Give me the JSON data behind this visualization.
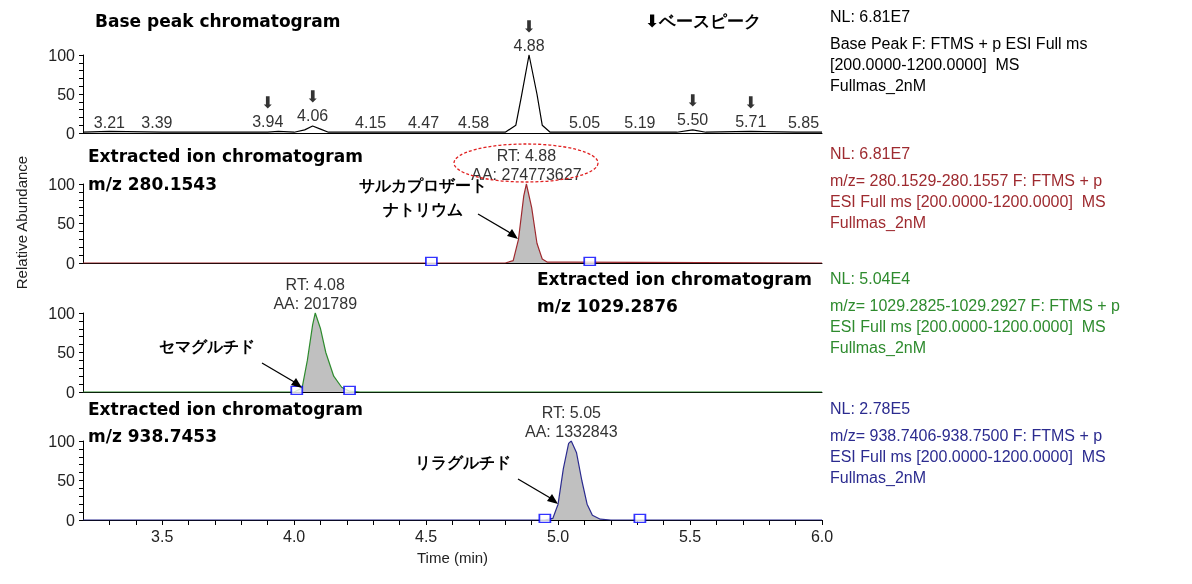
{
  "chart_data": [
    {
      "type": "line",
      "title": "Base peak chromatogram",
      "subtitle": "⬇ベースピーク",
      "series": [
        {
          "color": "#000000",
          "x": [
            3.2,
            3.3,
            3.5,
            3.7,
            3.9,
            3.94,
            4.0,
            4.04,
            4.07,
            4.1,
            4.13,
            4.3,
            4.5,
            4.7,
            4.8,
            4.84,
            4.86,
            4.89,
            4.92,
            4.94,
            4.97,
            5.2,
            5.45,
            5.51,
            5.56,
            5.73,
            5.9,
            6.0
          ],
          "values": [
            1,
            2,
            1,
            1,
            1,
            2,
            1,
            4,
            9,
            5,
            1,
            1,
            1,
            1,
            1,
            10,
            45,
            100,
            50,
            10,
            1,
            1,
            1,
            4,
            1,
            2,
            1,
            1
          ]
        }
      ],
      "xlim": [
        3.2,
        6.0
      ],
      "ylim": [
        0,
        100
      ],
      "yticks": [
        0,
        {
          "value": 10,
          "label": null
        },
        {
          "value": 20,
          "label": null
        },
        {
          "value": 30,
          "label": null
        },
        {
          "value": 40,
          "label": null
        },
        50,
        {
          "value": 60,
          "label": null
        },
        {
          "value": 70,
          "label": null
        },
        {
          "value": 80,
          "label": null
        },
        {
          "value": 90,
          "label": null
        },
        100
      ],
      "tick_labels": "y",
      "marker": "none",
      "annotations": [
        {
          "text": "3.21",
          "x": 3.3,
          "y": 1
        },
        {
          "text": "3.39",
          "x": 3.48,
          "y": 1
        },
        {
          "text": "3.94",
          "x": 3.9,
          "y": 2
        },
        {
          "text": "⬇",
          "x": 3.9,
          "y": 2
        },
        {
          "text": "4.06",
          "x": 4.07,
          "y": 9
        },
        {
          "text": "⬇",
          "x": 4.07,
          "y": 9
        },
        {
          "text": "4.15",
          "x": 4.29,
          "y": 1
        },
        {
          "text": "4.47",
          "x": 4.49,
          "y": 1
        },
        {
          "text": "4.58",
          "x": 4.68,
          "y": 1
        },
        {
          "text": "4.88",
          "x": 4.89,
          "y": 100
        },
        {
          "text": "⬇",
          "x": 4.89,
          "y": 100
        },
        {
          "text": "5.05",
          "x": 5.1,
          "y": 1
        },
        {
          "text": "5.19",
          "x": 5.31,
          "y": 1
        },
        {
          "text": "5.50",
          "x": 5.51,
          "y": 4
        },
        {
          "text": "⬇",
          "x": 5.51,
          "y": 4
        },
        {
          "text": "5.71",
          "x": 5.73,
          "y": 2
        },
        {
          "text": "⬇",
          "x": 5.73,
          "y": 2
        },
        {
          "text": "5.85",
          "x": 5.93,
          "y": 1
        },
        "NL: 6.81E7",
        "Base Peak F: FTMS + p ESI Full ms",
        "[200.0000-1200.0000]  MS",
        "Fullmas_2nM"
      ]
    },
    {
      "type": "area",
      "title": "Extracted ion chromatogram",
      "subtitle": "m/z 280.1543",
      "ylabel": "Relative Abundance",
      "series": [
        {
          "color": "#9e2a2f",
          "x": [
            3.2,
            4.8,
            4.83,
            4.85,
            4.87,
            4.88,
            4.9,
            4.92,
            4.94,
            4.96,
            5.05,
            6.0
          ],
          "values": [
            0,
            0,
            3,
            30,
            85,
            100,
            70,
            25,
            5,
            1,
            1,
            0
          ]
        },
        {
          "type": "scatter",
          "marker": "square",
          "color": "#0000ff",
          "x": [
            4.52,
            5.12
          ],
          "values": [
            2,
            2
          ]
        }
      ],
      "xlim": [
        3.2,
        6.0
      ],
      "ylim": [
        0,
        100
      ],
      "yticks": [
        0,
        {
          "value": 10,
          "label": null
        },
        {
          "value": 20,
          "label": null
        },
        {
          "value": 30,
          "label": null
        },
        {
          "value": 40,
          "label": null
        },
        50,
        {
          "value": 60,
          "label": null
        },
        {
          "value": 70,
          "label": null
        },
        {
          "value": 80,
          "label": null
        },
        {
          "value": 90,
          "label": null
        },
        100
      ],
      "tick_labels": "y",
      "marker": "none",
      "annotations": [
        {
          "text": "サルカプロザートナトリウム",
          "x": 4.85,
          "y": 30
        },
        {
          "text": "AA: 274773627",
          "x": 4.88,
          "y": 100
        },
        {
          "text": "RT: 4.88",
          "x": 4.88,
          "y": 100
        },
        "NL: 6.81E7",
        "m/z= 280.1529-280.1557 F: FTMS + p",
        "ESI Full ms [200.0000-1200.0000]  MS",
        "Fullmas_2nM"
      ]
    },
    {
      "type": "area",
      "title": "Extracted ion chromatogram",
      "subtitle": "m/z 1029.2876",
      "series": [
        {
          "color": "#2e8b2e",
          "x": [
            3.2,
            4.0,
            4.03,
            4.05,
            4.07,
            4.08,
            4.1,
            4.12,
            4.15,
            4.18,
            4.21,
            4.25,
            6.0
          ],
          "values": [
            0,
            0,
            5,
            40,
            85,
            100,
            80,
            50,
            20,
            6,
            1,
            0,
            0
          ]
        },
        {
          "type": "scatter",
          "marker": "square",
          "color": "#0000ff",
          "x": [
            4.01,
            4.21
          ],
          "values": [
            2,
            2
          ]
        }
      ],
      "xlim": [
        3.2,
        6.0
      ],
      "ylim": [
        0,
        100
      ],
      "yticks": [
        0,
        {
          "value": 10,
          "label": null
        },
        {
          "value": 20,
          "label": null
        },
        {
          "value": 30,
          "label": null
        },
        {
          "value": 40,
          "label": null
        },
        50,
        {
          "value": 60,
          "label": null
        },
        {
          "value": 70,
          "label": null
        },
        {
          "value": 80,
          "label": null
        },
        {
          "value": 90,
          "label": null
        },
        100
      ],
      "tick_labels": "y",
      "marker": "none",
      "annotations": [
        {
          "text": "セマグルチド",
          "x": 4.03,
          "y": 5
        },
        {
          "text": "AA: 201789",
          "x": 4.08,
          "y": 100
        },
        {
          "text": "RT: 4.08",
          "x": 4.08,
          "y": 100
        },
        "NL: 5.04E4",
        "m/z= 1029.2825-1029.2927 F: FTMS + p",
        "ESI Full ms [200.0000-1200.0000]  MS",
        "Fullmas_2nM"
      ]
    },
    {
      "type": "area",
      "title": "Extracted ion chromatogram",
      "subtitle": "m/z 938.7453",
      "xlabel": "Time (min)",
      "series": [
        {
          "color": "#2b2b8f",
          "x": [
            3.2,
            4.95,
            4.98,
            5.0,
            5.02,
            5.04,
            5.05,
            5.07,
            5.09,
            5.11,
            5.13,
            5.16,
            5.2,
            6.0
          ],
          "values": [
            0,
            0,
            2,
            20,
            65,
            97,
            100,
            85,
            50,
            20,
            6,
            1,
            0,
            0
          ]
        },
        {
          "type": "scatter",
          "marker": "square",
          "color": "#0000ff",
          "x": [
            4.95,
            5.31
          ],
          "values": [
            2,
            2
          ]
        }
      ],
      "xlim": [
        3.2,
        6.0
      ],
      "ylim": [
        0,
        100
      ],
      "xticks": [
        {
          "value": 3.3,
          "label": null
        },
        {
          "value": 3.4,
          "label": null
        },
        3.5,
        {
          "value": 3.6,
          "label": null
        },
        {
          "value": 3.7,
          "label": null
        },
        {
          "value": 3.8,
          "label": null
        },
        {
          "value": 3.9,
          "label": null
        },
        {
          "value": 4,
          "label": "4.0"
        },
        {
          "value": 4.1,
          "label": null
        },
        {
          "value": 4.2,
          "label": null
        },
        {
          "value": 4.3,
          "label": null
        },
        {
          "value": 4.4,
          "label": null
        },
        4.5,
        {
          "value": 4.6,
          "label": null
        },
        {
          "value": 4.7,
          "label": null
        },
        {
          "value": 4.8,
          "label": null
        },
        {
          "value": 4.9,
          "label": null
        },
        {
          "value": 5,
          "label": "5.0"
        },
        {
          "value": 5.1,
          "label": null
        },
        {
          "value": 5.2,
          "label": null
        },
        {
          "value": 5.3,
          "label": null
        },
        {
          "value": 5.4,
          "label": null
        },
        5.5,
        {
          "value": 5.6,
          "label": null
        },
        {
          "value": 5.7,
          "label": null
        },
        {
          "value": 5.8,
          "label": null
        },
        {
          "value": 5.9,
          "label": null
        },
        {
          "value": 6,
          "label": "6.0"
        }
      ],
      "yticks": [
        0,
        {
          "value": 10,
          "label": null
        },
        {
          "value": 20,
          "label": null
        },
        {
          "value": 30,
          "label": null
        },
        {
          "value": 40,
          "label": null
        },
        50,
        {
          "value": 60,
          "label": null
        },
        {
          "value": 70,
          "label": null
        },
        {
          "value": 80,
          "label": null
        },
        {
          "value": 90,
          "label": null
        },
        100
      ],
      "marker": "none",
      "annotations": [
        {
          "text": "リラグルチド",
          "x": 5.0,
          "y": 20
        },
        {
          "text": "AA: 1332843",
          "x": 5.05,
          "y": 100
        },
        {
          "text": "RT: 5.05",
          "x": 5.05,
          "y": 100
        },
        "NL: 2.78E5",
        "m/z= 938.7406-938.7500 F: FTMS + p",
        "ESI Full ms [200.0000-1200.0000]  MS",
        "Fullmas_2nM"
      ]
    }
  ]
}
